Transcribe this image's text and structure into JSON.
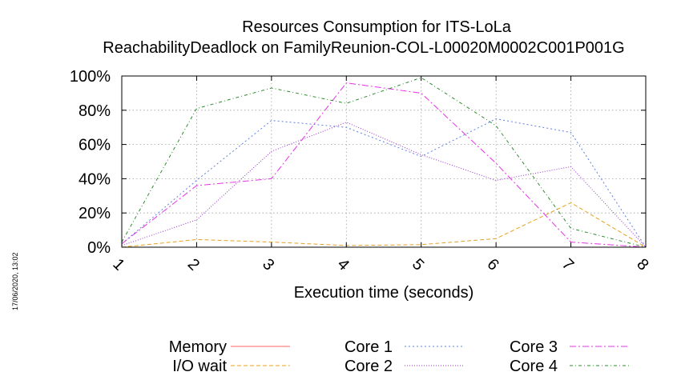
{
  "timestamp": "17/06/2020, 13:02",
  "chart_data": {
    "type": "line",
    "title": "Resources Consumption for ITS-LoLa",
    "subtitle": "ReachabilityDeadlock on FamilyReunion-COL-L00020M0002C001P001G",
    "xlabel": "Execution time (seconds)",
    "ylabel": "",
    "x": [
      1,
      2,
      3,
      4,
      5,
      6,
      7,
      8
    ],
    "xlim": [
      1,
      8
    ],
    "ylim": [
      0,
      100
    ],
    "yticks": [
      "0%",
      "20%",
      "40%",
      "60%",
      "80%",
      "100%"
    ],
    "xticks": [
      "1",
      "2",
      "3",
      "4",
      "5",
      "6",
      "7",
      "8"
    ],
    "grid": true,
    "legend_position": "bottom",
    "series": [
      {
        "name": "Memory",
        "color": "#ff6666",
        "dash": "",
        "values": [
          null,
          null,
          null,
          null,
          null,
          null,
          null,
          null
        ]
      },
      {
        "name": "I/O wait",
        "color": "#e6a21f",
        "dash": "5,3",
        "values": [
          0,
          4.5,
          3,
          1,
          1.5,
          5,
          26,
          0
        ]
      },
      {
        "name": "Core 1",
        "color": "#5f7fe0",
        "dash": "2,3",
        "values": [
          2,
          39,
          74,
          70,
          53,
          75,
          67,
          0
        ]
      },
      {
        "name": "Core 2",
        "color": "#9933cc",
        "dash": "1,2",
        "values": [
          1,
          16,
          56,
          73,
          54,
          39,
          47,
          0
        ]
      },
      {
        "name": "Core 3",
        "color": "#e633e6",
        "dash": "8,3,2,3",
        "values": [
          2,
          36,
          40,
          96,
          90,
          49,
          3,
          0
        ]
      },
      {
        "name": "Core 4",
        "color": "#2e8b2e",
        "dash": "4,3,1,3",
        "values": [
          3,
          81,
          93,
          84,
          99,
          71,
          11,
          0
        ]
      }
    ]
  }
}
